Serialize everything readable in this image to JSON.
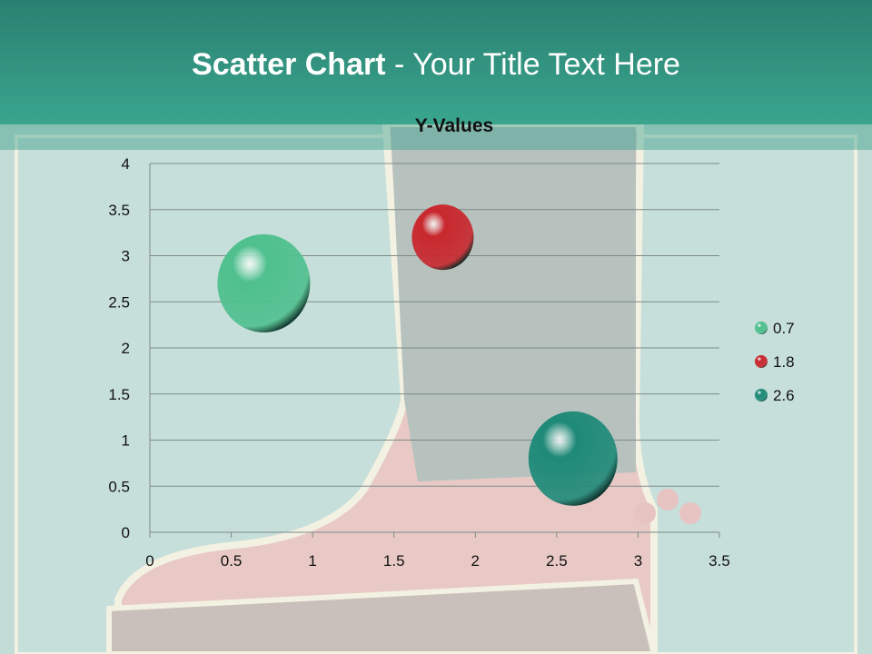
{
  "slide": {
    "title_bold": "Scatter Chart",
    "title_rest": " - Your Title Text Here"
  },
  "chart_data": {
    "type": "scatter",
    "title": "Y-Values",
    "xlim": [
      0,
      3.5
    ],
    "ylim": [
      0,
      4
    ],
    "x_ticks": [
      "0",
      "0.5",
      "1",
      "1.5",
      "2",
      "2.5",
      "3",
      "3.5"
    ],
    "y_ticks": [
      "0",
      "0.5",
      "1",
      "1.5",
      "2",
      "2.5",
      "3",
      "3.5",
      "4"
    ],
    "grid": "horizontal",
    "legend_placement": "right",
    "series": [
      {
        "name": "0.7",
        "x": 0.7,
        "y": 2.7,
        "color": "#4fc08e"
      },
      {
        "name": "1.8",
        "x": 1.8,
        "y": 3.2,
        "color": "#c8282e"
      },
      {
        "name": "2.6",
        "x": 2.6,
        "y": 0.8,
        "color": "#1f8a78"
      }
    ]
  }
}
